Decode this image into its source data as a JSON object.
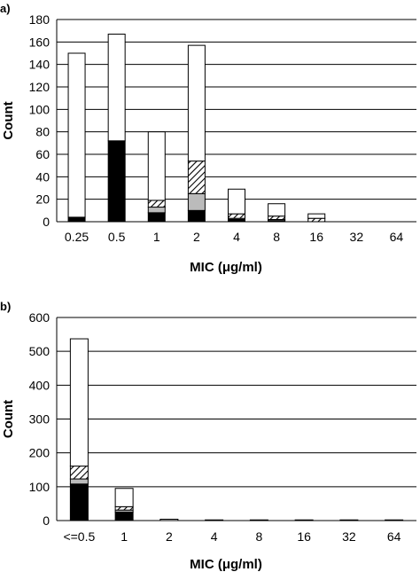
{
  "chart_data": [
    {
      "panel_label": "a)",
      "type": "bar",
      "stacked": true,
      "xlabel": "MIC (μg/ml)",
      "ylabel": "Count",
      "ylim": [
        0,
        180
      ],
      "yticks": [
        0,
        20,
        40,
        60,
        80,
        100,
        120,
        140,
        160,
        180
      ],
      "grid": true,
      "categories": [
        "0.25",
        "0.5",
        "1",
        "2",
        "4",
        "8",
        "16",
        "32",
        "64"
      ],
      "series": [
        {
          "fill": "#000000",
          "values": [
            4,
            72,
            8,
            10,
            2,
            1,
            0,
            0,
            0
          ]
        },
        {
          "fill": "#bbbbbb",
          "values": [
            0,
            0,
            5,
            15,
            1,
            1,
            0,
            0,
            0
          ]
        },
        {
          "fill": "hatch",
          "values": [
            0,
            0,
            6,
            29,
            4,
            3,
            3,
            0,
            0
          ]
        },
        {
          "fill": "#ffffff",
          "values": [
            146,
            95,
            61,
            103,
            22,
            11,
            4,
            0,
            0
          ]
        }
      ]
    },
    {
      "panel_label": "b)",
      "type": "bar",
      "stacked": true,
      "xlabel": "MIC (μg/ml)",
      "ylabel": "Count",
      "ylim": [
        0,
        600
      ],
      "yticks": [
        0,
        100,
        200,
        300,
        400,
        500,
        600
      ],
      "grid": true,
      "categories": [
        "<=0.5",
        "1",
        "2",
        "4",
        "8",
        "16",
        "32",
        "64"
      ],
      "series": [
        {
          "fill": "#000000",
          "values": [
            108,
            25,
            0,
            0,
            0,
            0,
            0,
            0
          ]
        },
        {
          "fill": "#bbbbbb",
          "values": [
            15,
            6,
            0,
            0,
            0,
            0,
            0,
            0
          ]
        },
        {
          "fill": "hatch",
          "values": [
            38,
            10,
            0,
            0,
            0,
            0,
            0,
            0
          ]
        },
        {
          "fill": "#ffffff",
          "values": [
            376,
            54,
            4,
            2,
            2,
            2,
            2,
            2
          ]
        }
      ]
    }
  ]
}
